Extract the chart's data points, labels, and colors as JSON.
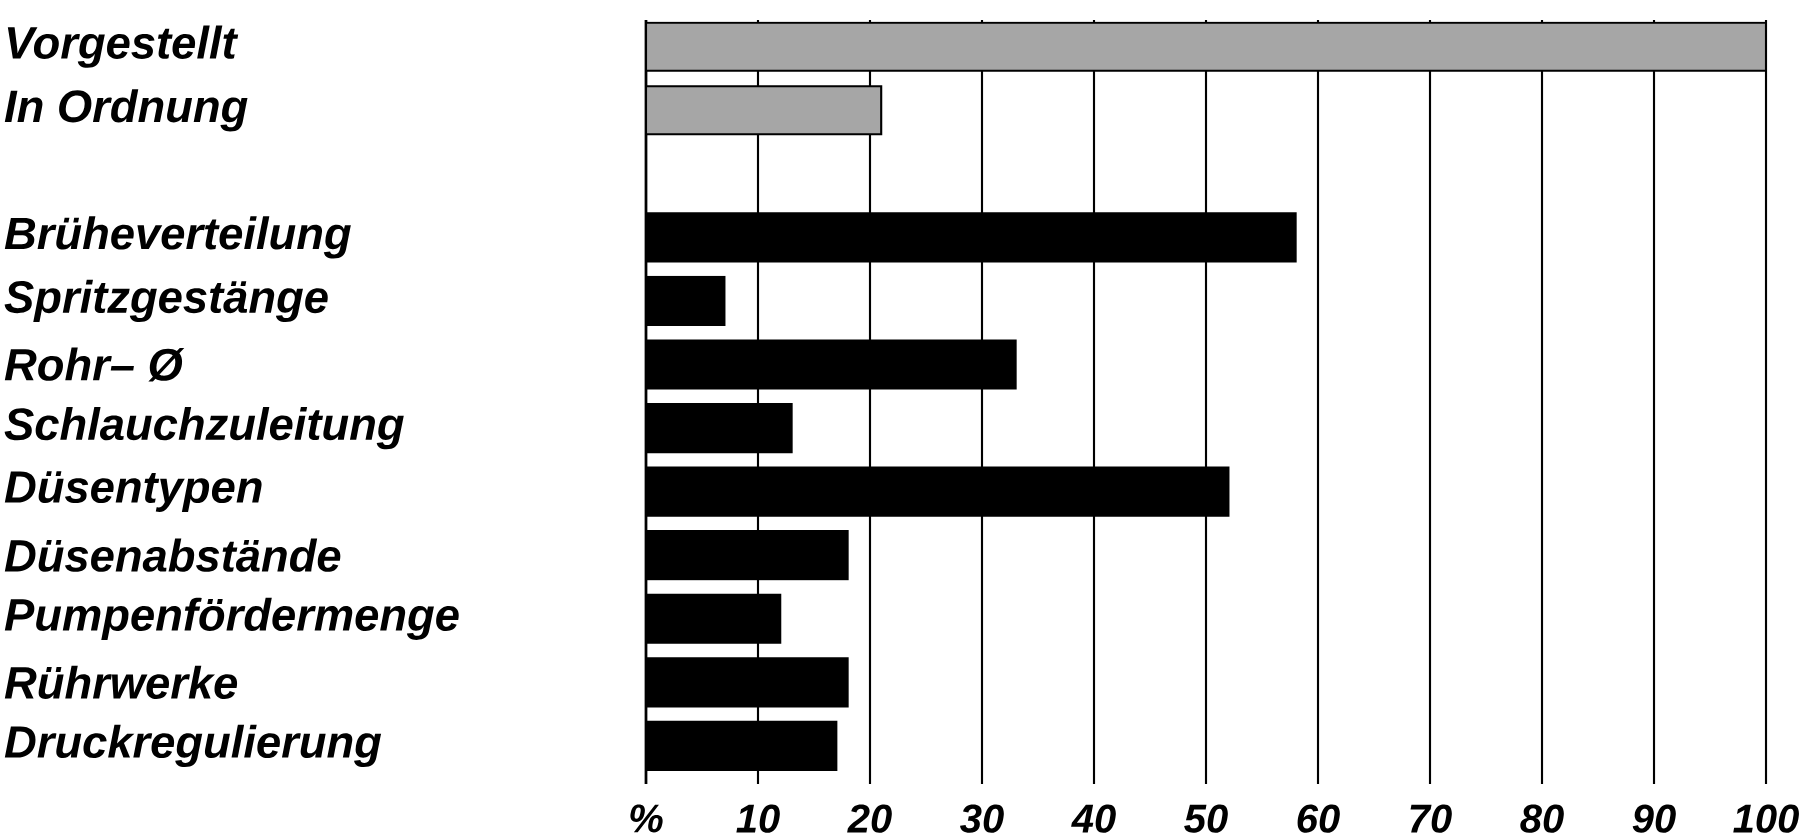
{
  "chart_data": {
    "type": "bar",
    "orientation": "horizontal",
    "categories": [
      "Vorgestellt",
      "In Ordnung",
      null,
      "Brüheverteilung",
      "Spritzgestänge",
      "Rohr– Ø",
      "Schlauchzuleitung",
      "Düsentypen",
      "Düsenabstände",
      "Pumpenfördermenge",
      "Rührwerke",
      "Druckregulierung"
    ],
    "values": [
      100,
      21,
      null,
      58,
      7,
      33,
      13,
      52,
      18,
      12,
      18,
      17
    ],
    "colors": [
      "#a6a6a6",
      "#a6a6a6",
      "#000000",
      "#000000",
      "#000000",
      "#000000",
      "#000000",
      "#000000",
      "#000000",
      "#000000",
      "#000000",
      "#000000"
    ],
    "xlim": [
      0,
      100
    ],
    "xticks": [
      {
        "value": 0,
        "label": "%"
      },
      10,
      20,
      30,
      40,
      50,
      60,
      70,
      80,
      90,
      100
    ],
    "grid": "x"
  }
}
